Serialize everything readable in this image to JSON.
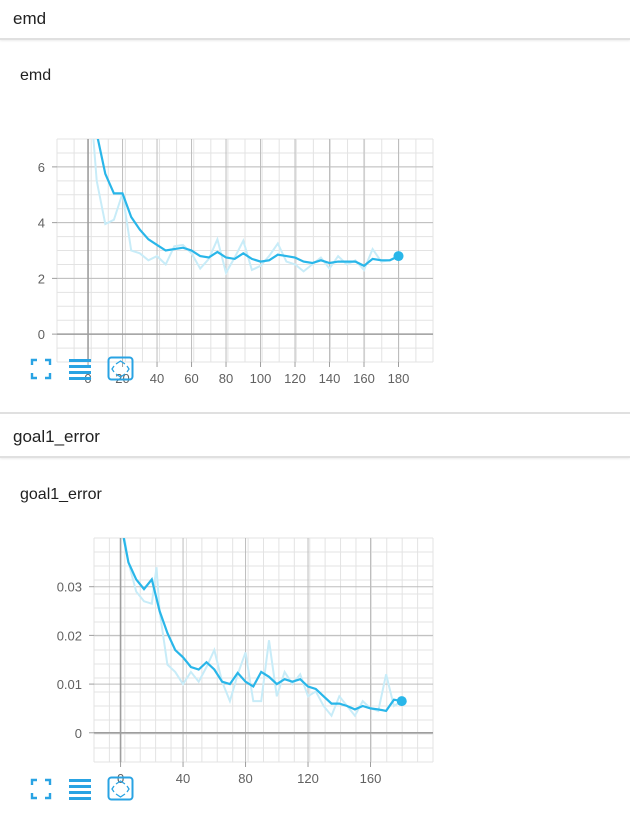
{
  "sections": [
    {
      "header": "emd"
    },
    {
      "header": "goal1_error"
    }
  ],
  "accent": "#29b6e9",
  "accent_light": "#c8ecf8",
  "toolbar_icons": [
    "expand-icon",
    "data-table-icon",
    "fit-domain-icon"
  ],
  "chart_data": [
    {
      "type": "line",
      "title": "emd",
      "xlim": [
        -18,
        200
      ],
      "ylim": [
        -1,
        7
      ],
      "xticks": [
        0,
        20,
        40,
        60,
        80,
        100,
        120,
        140,
        160,
        180
      ],
      "yticks": [
        0,
        2,
        4,
        6
      ],
      "grid": true,
      "series": [
        {
          "values_raw": [
            [
              0,
              9.5
            ],
            [
              5,
              5.5
            ],
            [
              10,
              3.95
            ],
            [
              15,
              4.1
            ],
            [
              20,
              5.05
            ],
            [
              25,
              3.0
            ],
            [
              30,
              2.9
            ],
            [
              35,
              2.65
            ],
            [
              40,
              2.8
            ],
            [
              45,
              2.5
            ],
            [
              50,
              3.15
            ],
            [
              55,
              3.2
            ],
            [
              60,
              2.9
            ],
            [
              65,
              2.35
            ],
            [
              70,
              2.7
            ],
            [
              75,
              3.4
            ],
            [
              80,
              2.2
            ],
            [
              85,
              2.75
            ],
            [
              90,
              3.35
            ],
            [
              95,
              2.3
            ],
            [
              100,
              2.45
            ],
            [
              105,
              2.8
            ],
            [
              110,
              3.25
            ],
            [
              115,
              2.6
            ],
            [
              120,
              2.5
            ],
            [
              125,
              2.25
            ],
            [
              130,
              2.5
            ],
            [
              135,
              2.75
            ],
            [
              140,
              2.35
            ],
            [
              145,
              2.8
            ],
            [
              150,
              2.5
            ],
            [
              155,
              2.65
            ],
            [
              160,
              2.3
            ],
            [
              165,
              3.05
            ],
            [
              170,
              2.6
            ],
            [
              175,
              2.65
            ],
            [
              180,
              2.8
            ]
          ],
          "values_smoothed": [
            [
              5,
              7.2
            ],
            [
              10,
              5.75
            ],
            [
              15,
              5.05
            ],
            [
              20,
              5.05
            ],
            [
              25,
              4.2
            ],
            [
              30,
              3.75
            ],
            [
              35,
              3.4
            ],
            [
              40,
              3.2
            ],
            [
              45,
              3.0
            ],
            [
              50,
              3.05
            ],
            [
              55,
              3.1
            ],
            [
              60,
              3.0
            ],
            [
              65,
              2.8
            ],
            [
              70,
              2.75
            ],
            [
              75,
              2.95
            ],
            [
              80,
              2.75
            ],
            [
              85,
              2.7
            ],
            [
              90,
              2.9
            ],
            [
              95,
              2.7
            ],
            [
              100,
              2.6
            ],
            [
              105,
              2.65
            ],
            [
              110,
              2.85
            ],
            [
              115,
              2.8
            ],
            [
              120,
              2.75
            ],
            [
              125,
              2.6
            ],
            [
              130,
              2.55
            ],
            [
              135,
              2.65
            ],
            [
              140,
              2.55
            ],
            [
              145,
              2.6
            ],
            [
              150,
              2.6
            ],
            [
              155,
              2.6
            ],
            [
              160,
              2.45
            ],
            [
              165,
              2.7
            ],
            [
              170,
              2.65
            ],
            [
              175,
              2.65
            ],
            [
              180,
              2.8
            ]
          ]
        }
      ]
    },
    {
      "type": "line",
      "title": "goal1_error",
      "xlim": [
        -17,
        200
      ],
      "ylim": [
        -0.006,
        0.04
      ],
      "xticks": [
        0,
        40,
        80,
        120,
        160
      ],
      "yticks": [
        "0",
        "0.01",
        "0.02",
        "0.03"
      ],
      "grid": true,
      "series": [
        {
          "values_raw": [
            [
              0,
              0.045
            ],
            [
              5,
              0.035
            ],
            [
              10,
              0.029
            ],
            [
              15,
              0.027
            ],
            [
              20,
              0.0265
            ],
            [
              23,
              0.034
            ],
            [
              25,
              0.025
            ],
            [
              30,
              0.014
            ],
            [
              35,
              0.0125
            ],
            [
              40,
              0.01
            ],
            [
              45,
              0.0125
            ],
            [
              50,
              0.0105
            ],
            [
              55,
              0.0135
            ],
            [
              60,
              0.017
            ],
            [
              65,
              0.0105
            ],
            [
              70,
              0.0065
            ],
            [
              75,
              0.012
            ],
            [
              80,
              0.0165
            ],
            [
              85,
              0.0065
            ],
            [
              90,
              0.0065
            ],
            [
              95,
              0.019
            ],
            [
              100,
              0.0075
            ],
            [
              105,
              0.0125
            ],
            [
              110,
              0.01
            ],
            [
              115,
              0.012
            ],
            [
              120,
              0.0075
            ],
            [
              125,
              0.0085
            ],
            [
              130,
              0.0055
            ],
            [
              135,
              0.0035
            ],
            [
              140,
              0.0075
            ],
            [
              145,
              0.0055
            ],
            [
              150,
              0.0035
            ],
            [
              155,
              0.0065
            ],
            [
              160,
              0.005
            ],
            [
              165,
              0.0045
            ],
            [
              170,
              0.012
            ],
            [
              175,
              0.0055
            ],
            [
              180,
              0.0065
            ]
          ],
          "values_smoothed": [
            [
              2,
              0.04
            ],
            [
              5,
              0.035
            ],
            [
              10,
              0.0315
            ],
            [
              15,
              0.0295
            ],
            [
              20,
              0.0315
            ],
            [
              25,
              0.025
            ],
            [
              30,
              0.0205
            ],
            [
              35,
              0.017
            ],
            [
              40,
              0.0155
            ],
            [
              45,
              0.0135
            ],
            [
              50,
              0.013
            ],
            [
              55,
              0.0145
            ],
            [
              60,
              0.013
            ],
            [
              65,
              0.0105
            ],
            [
              70,
              0.01
            ],
            [
              75,
              0.0123
            ],
            [
              80,
              0.0105
            ],
            [
              85,
              0.0095
            ],
            [
              90,
              0.0125
            ],
            [
              95,
              0.0115
            ],
            [
              100,
              0.01
            ],
            [
              105,
              0.011
            ],
            [
              110,
              0.0105
            ],
            [
              115,
              0.011
            ],
            [
              120,
              0.0095
            ],
            [
              125,
              0.009
            ],
            [
              130,
              0.0075
            ],
            [
              135,
              0.006
            ],
            [
              140,
              0.006
            ],
            [
              145,
              0.0055
            ],
            [
              150,
              0.0048
            ],
            [
              155,
              0.0055
            ],
            [
              160,
              0.005
            ],
            [
              165,
              0.0048
            ],
            [
              170,
              0.0045
            ],
            [
              175,
              0.0068
            ],
            [
              180,
              0.0065
            ]
          ]
        }
      ]
    }
  ]
}
